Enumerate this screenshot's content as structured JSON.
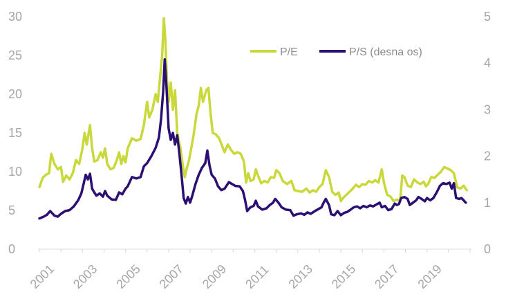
{
  "colors": {
    "pe": "#c9d83a",
    "ps": "#2b0f73",
    "axis": "#d9d9d9",
    "tick_text": "#a6a6a6",
    "legend_text": "#8c8c8c"
  },
  "chart_data": {
    "type": "line",
    "x_ticks": [
      "2001",
      "2003",
      "2005",
      "2007",
      "2009",
      "2011",
      "2013",
      "2015",
      "2017",
      "2019"
    ],
    "y_left": {
      "ticks": [
        "0",
        "5",
        "10",
        "15",
        "20",
        "25",
        "30"
      ],
      "range": [
        0,
        30
      ]
    },
    "y_right": {
      "ticks": [
        "0",
        "1",
        "2",
        "3",
        "4",
        "5"
      ],
      "range": [
        0,
        5
      ]
    },
    "x_range": [
      2001.0,
      2021.0
    ],
    "grid": false,
    "legend_position": "top-right",
    "series": [
      {
        "name": "P/E",
        "axis": "left",
        "points": [
          [
            2001.0,
            8.0
          ],
          [
            2001.15,
            9.2
          ],
          [
            2001.3,
            9.6
          ],
          [
            2001.45,
            9.8
          ],
          [
            2001.55,
            12.3
          ],
          [
            2001.7,
            11.0
          ],
          [
            2001.85,
            10.3
          ],
          [
            2002.0,
            10.6
          ],
          [
            2002.1,
            8.7
          ],
          [
            2002.25,
            9.5
          ],
          [
            2002.4,
            9.0
          ],
          [
            2002.55,
            9.8
          ],
          [
            2002.7,
            11.5
          ],
          [
            2002.85,
            11.0
          ],
          [
            2003.0,
            13.0
          ],
          [
            2003.1,
            15.0
          ],
          [
            2003.2,
            13.5
          ],
          [
            2003.35,
            16.0
          ],
          [
            2003.45,
            13.0
          ],
          [
            2003.55,
            11.3
          ],
          [
            2003.7,
            11.5
          ],
          [
            2003.85,
            12.5
          ],
          [
            2003.95,
            11.8
          ],
          [
            2004.05,
            13.0
          ],
          [
            2004.15,
            11.0
          ],
          [
            2004.3,
            10.3
          ],
          [
            2004.45,
            10.5
          ],
          [
            2004.6,
            11.5
          ],
          [
            2004.7,
            12.5
          ],
          [
            2004.8,
            11.0
          ],
          [
            2004.9,
            12.0
          ],
          [
            2005.0,
            11.2
          ],
          [
            2005.1,
            13.0
          ],
          [
            2005.3,
            14.3
          ],
          [
            2005.5,
            14.0
          ],
          [
            2005.7,
            14.2
          ],
          [
            2005.85,
            16.0
          ],
          [
            2006.0,
            19.0
          ],
          [
            2006.1,
            17.0
          ],
          [
            2006.25,
            18.0
          ],
          [
            2006.4,
            20.0
          ],
          [
            2006.5,
            19.0
          ],
          [
            2006.6,
            22.0
          ],
          [
            2006.7,
            25.0
          ],
          [
            2006.78,
            29.8
          ],
          [
            2006.85,
            27.0
          ],
          [
            2006.92,
            22.0
          ],
          [
            2007.0,
            19.0
          ],
          [
            2007.1,
            21.5
          ],
          [
            2007.2,
            18.0
          ],
          [
            2007.3,
            20.5
          ],
          [
            2007.4,
            15.0
          ],
          [
            2007.55,
            13.0
          ],
          [
            2007.65,
            11.0
          ],
          [
            2007.75,
            9.3
          ],
          [
            2007.85,
            10.5
          ],
          [
            2007.95,
            11.5
          ],
          [
            2008.05,
            13.0
          ],
          [
            2008.15,
            14.5
          ],
          [
            2008.3,
            17.5
          ],
          [
            2008.4,
            18.5
          ],
          [
            2008.5,
            20.8
          ],
          [
            2008.6,
            19.0
          ],
          [
            2008.75,
            20.5
          ],
          [
            2008.85,
            20.8
          ],
          [
            2008.95,
            17.5
          ],
          [
            2009.05,
            15.0
          ],
          [
            2009.2,
            14.8
          ],
          [
            2009.35,
            14.3
          ],
          [
            2009.5,
            13.2
          ],
          [
            2009.6,
            12.5
          ],
          [
            2009.75,
            13.5
          ],
          [
            2009.9,
            12.8
          ],
          [
            2010.05,
            12.3
          ],
          [
            2010.2,
            12.5
          ],
          [
            2010.35,
            12.3
          ],
          [
            2010.5,
            11.3
          ],
          [
            2010.6,
            8.6
          ],
          [
            2010.7,
            9.8
          ],
          [
            2010.8,
            8.8
          ],
          [
            2010.95,
            9.0
          ],
          [
            2011.05,
            10.3
          ],
          [
            2011.15,
            9.5
          ],
          [
            2011.3,
            8.5
          ],
          [
            2011.45,
            8.8
          ],
          [
            2011.6,
            8.6
          ],
          [
            2011.75,
            9.3
          ],
          [
            2011.9,
            9.2
          ],
          [
            2012.0,
            10.2
          ],
          [
            2012.15,
            9.8
          ],
          [
            2012.3,
            8.8
          ],
          [
            2012.5,
            8.4
          ],
          [
            2012.7,
            8.8
          ],
          [
            2012.85,
            7.6
          ],
          [
            2013.0,
            7.5
          ],
          [
            2013.2,
            7.4
          ],
          [
            2013.4,
            7.8
          ],
          [
            2013.55,
            7.3
          ],
          [
            2013.7,
            7.6
          ],
          [
            2013.85,
            7.4
          ],
          [
            2014.0,
            8.0
          ],
          [
            2014.15,
            8.4
          ],
          [
            2014.3,
            10.2
          ],
          [
            2014.45,
            9.3
          ],
          [
            2014.6,
            7.4
          ],
          [
            2014.75,
            7.0
          ],
          [
            2014.9,
            7.3
          ],
          [
            2015.0,
            6.2
          ],
          [
            2015.1,
            6.6
          ],
          [
            2015.25,
            7.0
          ],
          [
            2015.4,
            7.4
          ],
          [
            2015.55,
            7.8
          ],
          [
            2015.7,
            8.3
          ],
          [
            2015.85,
            8.0
          ],
          [
            2016.0,
            8.4
          ],
          [
            2016.15,
            8.3
          ],
          [
            2016.3,
            8.8
          ],
          [
            2016.45,
            8.6
          ],
          [
            2016.6,
            8.9
          ],
          [
            2016.75,
            8.6
          ],
          [
            2016.9,
            10.3
          ],
          [
            2017.0,
            8.6
          ],
          [
            2017.15,
            7.0
          ],
          [
            2017.3,
            6.8
          ],
          [
            2017.45,
            6.2
          ],
          [
            2017.6,
            6.4
          ],
          [
            2017.75,
            6.2
          ],
          [
            2017.85,
            9.5
          ],
          [
            2017.95,
            9.3
          ],
          [
            2018.1,
            8.2
          ],
          [
            2018.25,
            8.0
          ],
          [
            2018.4,
            9.0
          ],
          [
            2018.55,
            8.6
          ],
          [
            2018.7,
            8.4
          ],
          [
            2018.85,
            8.7
          ],
          [
            2018.95,
            8.1
          ],
          [
            2019.05,
            8.4
          ],
          [
            2019.2,
            9.3
          ],
          [
            2019.35,
            9.2
          ],
          [
            2019.5,
            9.6
          ],
          [
            2019.65,
            10.0
          ],
          [
            2019.8,
            10.6
          ],
          [
            2019.95,
            10.4
          ],
          [
            2020.1,
            10.2
          ],
          [
            2020.25,
            9.8
          ],
          [
            2020.4,
            8.0
          ],
          [
            2020.55,
            7.8
          ],
          [
            2020.7,
            8.2
          ],
          [
            2020.85,
            7.6
          ]
        ]
      },
      {
        "name": "P/S (desna os)",
        "axis": "right",
        "points": [
          [
            2001.0,
            0.66
          ],
          [
            2001.2,
            0.7
          ],
          [
            2001.35,
            0.74
          ],
          [
            2001.5,
            0.82
          ],
          [
            2001.7,
            0.72
          ],
          [
            2001.85,
            0.7
          ],
          [
            2002.0,
            0.76
          ],
          [
            2002.2,
            0.82
          ],
          [
            2002.4,
            0.84
          ],
          [
            2002.6,
            0.92
          ],
          [
            2002.8,
            1.05
          ],
          [
            2002.95,
            1.2
          ],
          [
            2003.05,
            1.4
          ],
          [
            2003.15,
            1.6
          ],
          [
            2003.25,
            1.5
          ],
          [
            2003.35,
            1.62
          ],
          [
            2003.45,
            1.3
          ],
          [
            2003.55,
            1.22
          ],
          [
            2003.65,
            1.15
          ],
          [
            2003.8,
            1.2
          ],
          [
            2003.95,
            1.13
          ],
          [
            2004.05,
            1.25
          ],
          [
            2004.15,
            1.15
          ],
          [
            2004.35,
            1.07
          ],
          [
            2004.55,
            1.06
          ],
          [
            2004.7,
            1.22
          ],
          [
            2004.85,
            1.18
          ],
          [
            2005.0,
            1.3
          ],
          [
            2005.1,
            1.35
          ],
          [
            2005.3,
            1.55
          ],
          [
            2005.5,
            1.52
          ],
          [
            2005.7,
            1.55
          ],
          [
            2005.85,
            1.78
          ],
          [
            2006.0,
            1.85
          ],
          [
            2006.2,
            2.0
          ],
          [
            2006.4,
            2.18
          ],
          [
            2006.55,
            2.4
          ],
          [
            2006.65,
            2.8
          ],
          [
            2006.75,
            3.4
          ],
          [
            2006.82,
            4.08
          ],
          [
            2006.9,
            3.5
          ],
          [
            2007.0,
            2.6
          ],
          [
            2007.1,
            2.35
          ],
          [
            2007.2,
            2.5
          ],
          [
            2007.3,
            2.25
          ],
          [
            2007.4,
            2.45
          ],
          [
            2007.5,
            2.05
          ],
          [
            2007.6,
            1.6
          ],
          [
            2007.7,
            1.1
          ],
          [
            2007.8,
            0.98
          ],
          [
            2007.9,
            1.12
          ],
          [
            2008.0,
            1.0
          ],
          [
            2008.1,
            1.15
          ],
          [
            2008.25,
            1.4
          ],
          [
            2008.4,
            1.6
          ],
          [
            2008.55,
            1.75
          ],
          [
            2008.7,
            1.85
          ],
          [
            2008.8,
            2.12
          ],
          [
            2008.9,
            1.8
          ],
          [
            2009.0,
            1.6
          ],
          [
            2009.15,
            1.52
          ],
          [
            2009.3,
            1.35
          ],
          [
            2009.45,
            1.27
          ],
          [
            2009.6,
            1.3
          ],
          [
            2009.8,
            1.44
          ],
          [
            2009.95,
            1.4
          ],
          [
            2010.1,
            1.36
          ],
          [
            2010.3,
            1.35
          ],
          [
            2010.45,
            1.25
          ],
          [
            2010.55,
            1.06
          ],
          [
            2010.65,
            0.82
          ],
          [
            2010.8,
            0.9
          ],
          [
            2010.95,
            0.93
          ],
          [
            2011.05,
            1.04
          ],
          [
            2011.15,
            0.92
          ],
          [
            2011.35,
            0.85
          ],
          [
            2011.55,
            0.88
          ],
          [
            2011.7,
            0.95
          ],
          [
            2011.85,
            1.0
          ],
          [
            2011.95,
            1.08
          ],
          [
            2012.1,
            1.0
          ],
          [
            2012.25,
            0.9
          ],
          [
            2012.45,
            0.85
          ],
          [
            2012.65,
            0.84
          ],
          [
            2012.8,
            0.72
          ],
          [
            2012.95,
            0.75
          ],
          [
            2013.15,
            0.77
          ],
          [
            2013.3,
            0.74
          ],
          [
            2013.45,
            0.79
          ],
          [
            2013.6,
            0.76
          ],
          [
            2013.8,
            0.82
          ],
          [
            2013.95,
            0.86
          ],
          [
            2014.1,
            0.9
          ],
          [
            2014.2,
            1.0
          ],
          [
            2014.3,
            1.08
          ],
          [
            2014.45,
            0.95
          ],
          [
            2014.55,
            0.75
          ],
          [
            2014.7,
            0.73
          ],
          [
            2014.85,
            0.82
          ],
          [
            2015.0,
            0.73
          ],
          [
            2015.15,
            0.78
          ],
          [
            2015.3,
            0.8
          ],
          [
            2015.45,
            0.85
          ],
          [
            2015.6,
            0.9
          ],
          [
            2015.75,
            0.92
          ],
          [
            2015.9,
            0.88
          ],
          [
            2016.05,
            0.93
          ],
          [
            2016.2,
            0.9
          ],
          [
            2016.35,
            0.94
          ],
          [
            2016.5,
            0.92
          ],
          [
            2016.65,
            0.96
          ],
          [
            2016.8,
            1.0
          ],
          [
            2016.9,
            0.9
          ],
          [
            2017.05,
            0.93
          ],
          [
            2017.2,
            0.84
          ],
          [
            2017.35,
            0.86
          ],
          [
            2017.5,
            0.98
          ],
          [
            2017.6,
            0.95
          ],
          [
            2017.7,
            0.97
          ],
          [
            2017.8,
            1.1
          ],
          [
            2017.95,
            1.12
          ],
          [
            2018.1,
            1.08
          ],
          [
            2018.2,
            0.95
          ],
          [
            2018.35,
            1.0
          ],
          [
            2018.5,
            1.05
          ],
          [
            2018.6,
            1.12
          ],
          [
            2018.75,
            1.08
          ],
          [
            2018.9,
            1.03
          ],
          [
            2019.0,
            1.1
          ],
          [
            2019.15,
            1.05
          ],
          [
            2019.3,
            1.1
          ],
          [
            2019.45,
            1.22
          ],
          [
            2019.6,
            1.36
          ],
          [
            2019.75,
            1.42
          ],
          [
            2019.9,
            1.4
          ],
          [
            2020.05,
            1.43
          ],
          [
            2020.15,
            1.3
          ],
          [
            2020.25,
            1.42
          ],
          [
            2020.35,
            1.1
          ],
          [
            2020.5,
            1.08
          ],
          [
            2020.6,
            1.1
          ],
          [
            2020.7,
            1.05
          ],
          [
            2020.8,
            1.0
          ]
        ]
      }
    ]
  }
}
